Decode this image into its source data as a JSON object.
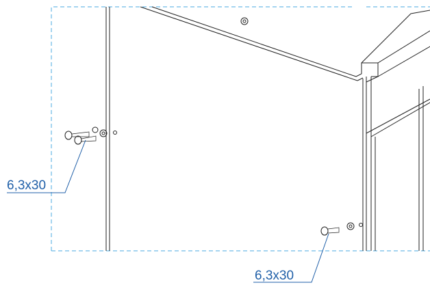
{
  "callouts": [
    {
      "label": "6,3x30"
    },
    {
      "label": "6,3x30"
    }
  ]
}
